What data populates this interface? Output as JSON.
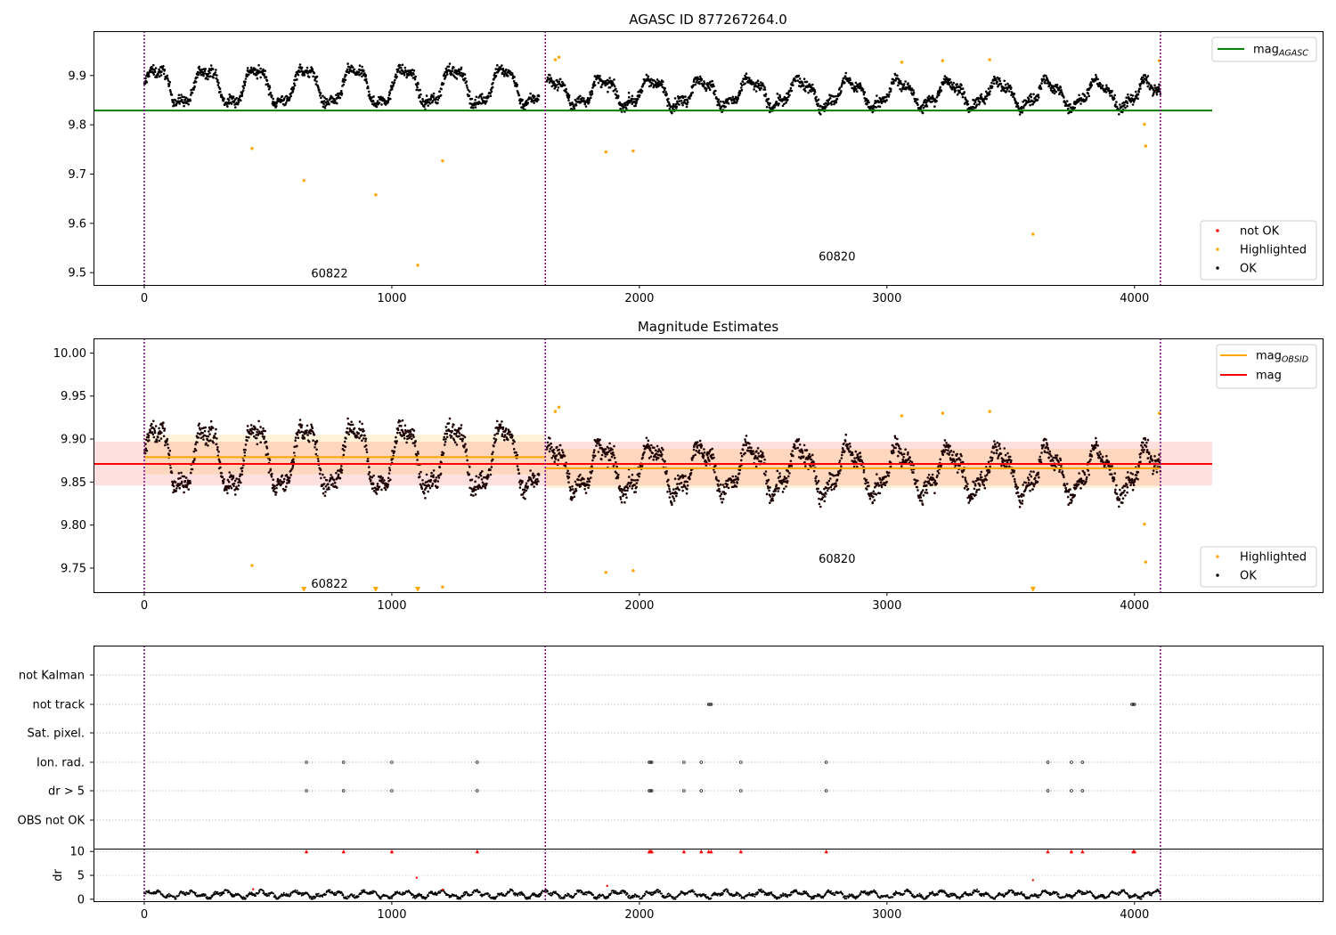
{
  "chart_data": [
    {
      "type": "scatter",
      "title": "AGASC ID 877267264.0",
      "xlim": [
        -205,
        4760
      ],
      "ylim": [
        9.475,
        9.99
      ],
      "yticks": [
        "9.5",
        "9.6",
        "9.7",
        "9.8",
        "9.9"
      ],
      "xticks": [
        "0",
        "1000",
        "2000",
        "3000",
        "4000"
      ],
      "mag_agasc": 9.829,
      "obsid_boundaries": [
        0,
        1620,
        4105
      ],
      "obsid_labels": [
        {
          "text": "60822",
          "x": 800,
          "y": 9.49
        },
        {
          "text": "60820",
          "x": 2850,
          "y": 9.525
        }
      ],
      "legend_lines": [
        {
          "label": "mag",
          "sub": "AGASC",
          "color": "#008000"
        }
      ],
      "legend_points": [
        {
          "label": "not OK",
          "color": "#ff0000"
        },
        {
          "label": "Highlighted",
          "color": "#ffa500"
        },
        {
          "label": "OK",
          "color": "#000000"
        }
      ],
      "highlighted": [
        [
          435,
          9.752
        ],
        [
          645,
          9.687
        ],
        [
          935,
          9.658
        ],
        [
          1105,
          9.515
        ],
        [
          1205,
          9.727
        ],
        [
          1865,
          9.745
        ],
        [
          1975,
          9.747
        ],
        [
          1660,
          9.932
        ],
        [
          1675,
          9.937
        ],
        [
          3060,
          9.927
        ],
        [
          3225,
          9.93
        ],
        [
          3415,
          9.932
        ],
        [
          3590,
          9.578
        ],
        [
          4040,
          9.801
        ],
        [
          4045,
          9.757
        ],
        [
          4100,
          9.93
        ]
      ]
    },
    {
      "type": "scatter",
      "title": "Magnitude Estimates",
      "xlim": [
        -205,
        4760
      ],
      "ylim": [
        9.722,
        10.017
      ],
      "yticks": [
        "9.75",
        "9.80",
        "9.85",
        "9.90",
        "9.95",
        "10.00"
      ],
      "xticks": [
        "0",
        "1000",
        "2000",
        "3000",
        "4000"
      ],
      "mag": 9.871,
      "mag_band": [
        9.846,
        9.897
      ],
      "obsid_mags": [
        {
          "x": [
            0,
            1620
          ],
          "mag": 9.879,
          "band": [
            9.859,
            9.905
          ]
        },
        {
          "x": [
            1620,
            4105
          ],
          "mag": 9.866,
          "band": [
            9.843,
            9.889
          ]
        }
      ],
      "obsid_boundaries": [
        0,
        1620,
        4105
      ],
      "obsid_labels": [
        {
          "text": "60822",
          "x": 800,
          "y": 9.727
        },
        {
          "text": "60820",
          "x": 2850,
          "y": 9.756
        }
      ],
      "legend_lines": [
        {
          "label": "mag",
          "sub": "OBSID",
          "color": "#ffa500"
        },
        {
          "label": "mag",
          "sub": "",
          "color": "#ff0000"
        }
      ],
      "legend_points": [
        {
          "label": "Highlighted",
          "color": "#ffa500"
        },
        {
          "label": "OK",
          "color": "#000000"
        }
      ],
      "highlighted": [
        [
          435,
          9.753
        ],
        [
          1205,
          9.728
        ],
        [
          1865,
          9.745
        ],
        [
          1975,
          9.747
        ],
        [
          1660,
          9.932
        ],
        [
          1675,
          9.937
        ],
        [
          3060,
          9.927
        ],
        [
          3225,
          9.93
        ],
        [
          3415,
          9.932
        ],
        [
          4040,
          9.801
        ],
        [
          4045,
          9.757
        ],
        [
          4100,
          9.93
        ]
      ],
      "highlighted_off_scale": [
        645,
        935,
        1105,
        3590
      ]
    },
    {
      "type": "scatter",
      "xlim": [
        -205,
        4760
      ],
      "xticks": [
        "0",
        "1000",
        "2000",
        "3000",
        "4000"
      ],
      "obsid_boundaries": [
        0,
        1620,
        4105
      ],
      "categories": [
        "not Kalman",
        "not track",
        "Sat. pixel.",
        "Ion. rad.",
        "dr > 5",
        "OBS not OK"
      ],
      "flags": {
        "not track": [
          2280,
          2285,
          2290,
          3990,
          3995,
          4000
        ],
        "Ion. rad.": [
          655,
          805,
          1000,
          1345,
          2040,
          2045,
          2050,
          2180,
          2250,
          2410,
          2755,
          3650,
          3745,
          3790
        ],
        "dr > 5": [
          655,
          805,
          1000,
          1345,
          2040,
          2045,
          2050,
          2180,
          2250,
          2410,
          2755,
          3650,
          3745,
          3790
        ]
      },
      "dr_ylabel": "dr",
      "dr_yticks": [
        "0",
        "5",
        "10"
      ],
      "dr_ylim": [
        -0.4,
        10.6
      ],
      "dr_clipped": [
        655,
        805,
        1000,
        1345,
        2040,
        2045,
        2050,
        2180,
        2250,
        2280,
        2290,
        2410,
        2755,
        3650,
        3745,
        3790,
        3995,
        4000
      ],
      "dr_red": [
        [
          1100,
          4.5
        ],
        [
          1870,
          2.8
        ],
        [
          3590,
          4.0
        ],
        [
          1205,
          2.0
        ],
        [
          440,
          2.1
        ]
      ]
    }
  ]
}
